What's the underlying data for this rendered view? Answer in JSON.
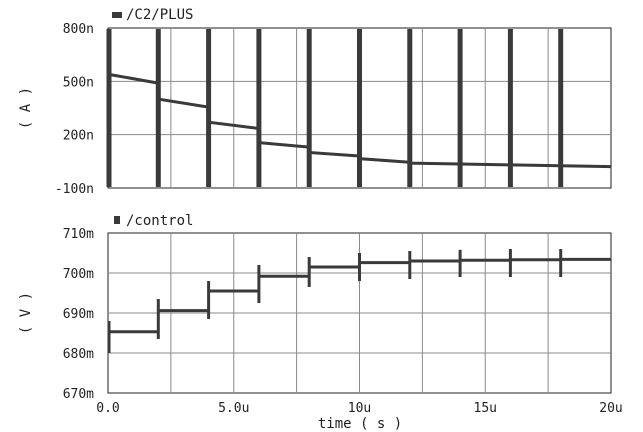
{
  "chart_data": [
    {
      "type": "line",
      "legend": "/C2/PLUS",
      "ylabel": "( A )",
      "yticks": [
        "800n",
        "500n",
        "200n",
        "-100n"
      ],
      "ytick_values": [
        800,
        500,
        200,
        -100
      ],
      "ylim": [
        -100,
        800
      ],
      "unit": "nA",
      "grid": true,
      "baseline": [
        {
          "x": 0.0,
          "y": 540
        },
        {
          "x": 2.0,
          "y": 490
        },
        {
          "x": 2.0,
          "y": 400
        },
        {
          "x": 4.0,
          "y": 355
        },
        {
          "x": 4.0,
          "y": 270
        },
        {
          "x": 6.0,
          "y": 235
        },
        {
          "x": 6.0,
          "y": 155
        },
        {
          "x": 8.0,
          "y": 130
        },
        {
          "x": 8.0,
          "y": 100
        },
        {
          "x": 10.0,
          "y": 80
        },
        {
          "x": 10.0,
          "y": 65
        },
        {
          "x": 12.0,
          "y": 45
        },
        {
          "x": 12.0,
          "y": 40
        },
        {
          "x": 14.0,
          "y": 35
        },
        {
          "x": 14.0,
          "y": 35
        },
        {
          "x": 16.0,
          "y": 30
        },
        {
          "x": 16.0,
          "y": 30
        },
        {
          "x": 18.0,
          "y": 25
        },
        {
          "x": 18.0,
          "y": 25
        },
        {
          "x": 20.0,
          "y": 20
        }
      ],
      "spikes_x": [
        0.0,
        2.0,
        4.0,
        6.0,
        8.0,
        10.0,
        12.0,
        14.0,
        16.0,
        18.0
      ],
      "spike_range": [
        -100,
        800
      ]
    },
    {
      "type": "line",
      "legend": "/control",
      "ylabel": "( V )",
      "yticks": [
        "710m",
        "700m",
        "690m",
        "680m",
        "670m"
      ],
      "ytick_values": [
        710,
        700,
        690,
        680,
        670
      ],
      "ylim": [
        670,
        710
      ],
      "unit": "mV",
      "grid": true,
      "steps": [
        {
          "x0": 0.0,
          "x1": 2.0,
          "y": 685.3
        },
        {
          "x0": 2.0,
          "x1": 4.0,
          "y": 690.6
        },
        {
          "x0": 4.0,
          "x1": 6.0,
          "y": 695.5
        },
        {
          "x0": 6.0,
          "x1": 8.0,
          "y": 699.2
        },
        {
          "x0": 8.0,
          "x1": 10.0,
          "y": 701.5
        },
        {
          "x0": 10.0,
          "x1": 12.0,
          "y": 702.6
        },
        {
          "x0": 12.0,
          "x1": 14.0,
          "y": 703.0
        },
        {
          "x0": 14.0,
          "x1": 16.0,
          "y": 703.2
        },
        {
          "x0": 16.0,
          "x1": 18.0,
          "y": 703.3
        },
        {
          "x0": 18.0,
          "x1": 20.0,
          "y": 703.4
        }
      ],
      "transition_spikes": [
        {
          "x": 0.0,
          "low": 680.0,
          "high": 688.0
        },
        {
          "x": 2.0,
          "low": 683.5,
          "high": 693.5
        },
        {
          "x": 4.0,
          "low": 688.5,
          "high": 698.0
        },
        {
          "x": 6.0,
          "low": 692.5,
          "high": 702.0
        },
        {
          "x": 8.0,
          "low": 696.5,
          "high": 704.0
        },
        {
          "x": 10.0,
          "low": 698.0,
          "high": 705.0
        },
        {
          "x": 12.0,
          "low": 698.5,
          "high": 705.5
        },
        {
          "x": 14.0,
          "low": 699.0,
          "high": 705.8
        },
        {
          "x": 16.0,
          "low": 699.0,
          "high": 706.0
        },
        {
          "x": 18.0,
          "low": 699.0,
          "high": 706.0
        }
      ]
    }
  ],
  "xaxis": {
    "label": "time ( s )",
    "ticks": [
      "0.0",
      "5.0u",
      "10u",
      "15u",
      "20u"
    ],
    "tick_values": [
      0,
      5,
      10,
      15,
      20
    ],
    "xlim": [
      0,
      20
    ],
    "minor_grid_values": [
      2.5,
      7.5,
      12.5,
      17.5
    ]
  },
  "colors": {
    "trace": "#3a3a3a",
    "grid": "#8a8a8a",
    "frame": "#222222",
    "background": "#ffffff"
  }
}
